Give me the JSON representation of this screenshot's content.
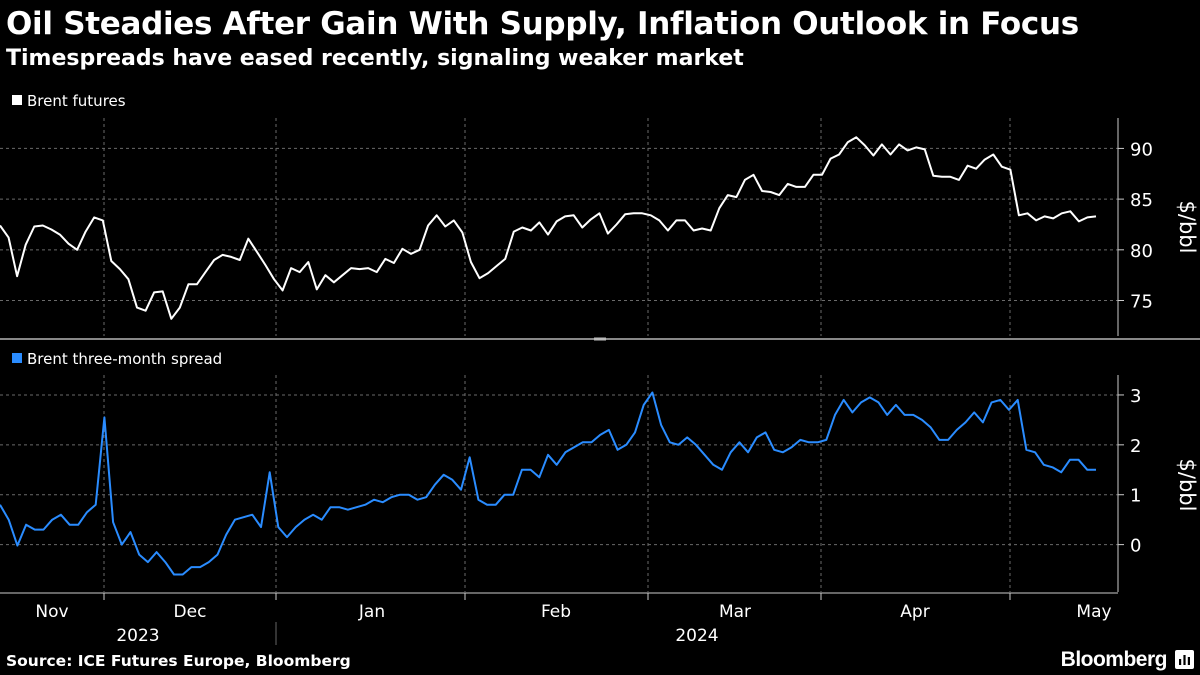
{
  "header": {
    "title": "Oil Steadies After Gain With Supply, Inflation Outlook in Focus",
    "subtitle": "Timespreads have eased recently, signaling weaker market"
  },
  "footer": {
    "source": "Source: ICE Futures Europe, Bloomberg",
    "brand": "Bloomberg"
  },
  "colors": {
    "background": "#000000",
    "futures": "#ffffff",
    "spread": "#2a8cff",
    "grid": "#6a6a6a",
    "axis": "#cccccc"
  },
  "chart_data": [
    {
      "type": "line",
      "legend": "Brent futures",
      "ylabel": "$/bbl",
      "ylim": [
        71.5,
        93
      ],
      "yticks": [
        75,
        80,
        85,
        90
      ],
      "grid": true,
      "values": [
        82.4,
        81.2,
        77.4,
        80.5,
        82.3,
        82.4,
        82.0,
        81.5,
        80.6,
        80.0,
        81.8,
        83.2,
        82.9,
        78.9,
        78.1,
        77.1,
        74.3,
        74.0,
        75.8,
        75.9,
        73.2,
        74.3,
        76.6,
        76.6,
        77.8,
        79.0,
        79.5,
        79.3,
        79.0,
        81.1,
        79.8,
        78.5,
        77.1,
        76.0,
        78.2,
        77.8,
        78.8,
        76.1,
        77.5,
        76.8,
        77.5,
        78.2,
        78.1,
        78.2,
        77.8,
        79.1,
        78.7,
        80.1,
        79.6,
        80.0,
        82.4,
        83.4,
        82.3,
        82.9,
        81.7,
        78.8,
        77.2,
        77.7,
        78.4,
        79.1,
        81.8,
        82.2,
        81.9,
        82.7,
        81.5,
        82.8,
        83.3,
        83.4,
        82.2,
        83.0,
        83.6,
        81.6,
        82.5,
        83.5,
        83.6,
        83.6,
        83.4,
        82.9,
        81.9,
        82.9,
        82.9,
        81.9,
        82.1,
        81.9,
        84.1,
        85.4,
        85.2,
        86.9,
        87.4,
        85.8,
        85.7,
        85.4,
        86.5,
        86.2,
        86.2,
        87.4,
        87.4,
        89.0,
        89.4,
        90.6,
        91.1,
        90.3,
        89.3,
        90.4,
        89.4,
        90.4,
        89.8,
        90.1,
        89.9,
        87.3,
        87.2,
        87.2,
        86.9,
        88.3,
        88.0,
        88.9,
        89.4,
        88.2,
        87.9,
        83.4,
        83.6,
        82.9,
        83.3,
        83.1,
        83.6,
        83.8,
        82.8,
        83.2,
        83.3
      ]
    },
    {
      "type": "line",
      "legend": "Brent three-month spread",
      "ylabel": "$/bbl",
      "ylim": [
        -0.95,
        3.4
      ],
      "yticks": [
        0,
        1,
        2,
        3
      ],
      "grid": true,
      "values": [
        0.8,
        0.5,
        -0.02,
        0.4,
        0.3,
        0.3,
        0.5,
        0.6,
        0.4,
        0.4,
        0.65,
        0.8,
        2.55,
        0.45,
        0.0,
        0.25,
        -0.2,
        -0.35,
        -0.15,
        -0.35,
        -0.6,
        -0.6,
        -0.45,
        -0.45,
        -0.35,
        -0.2,
        0.2,
        0.5,
        0.55,
        0.6,
        0.35,
        1.45,
        0.35,
        0.15,
        0.35,
        0.5,
        0.6,
        0.5,
        0.75,
        0.75,
        0.7,
        0.75,
        0.8,
        0.9,
        0.85,
        0.95,
        1.0,
        1.0,
        0.9,
        0.95,
        1.2,
        1.4,
        1.3,
        1.1,
        1.75,
        0.9,
        0.8,
        0.8,
        1.0,
        1.0,
        1.5,
        1.5,
        1.35,
        1.8,
        1.6,
        1.85,
        1.95,
        2.05,
        2.05,
        2.2,
        2.3,
        1.9,
        2.0,
        2.25,
        2.8,
        3.05,
        2.4,
        2.05,
        2.0,
        2.15,
        2.0,
        1.8,
        1.6,
        1.5,
        1.85,
        2.05,
        1.85,
        2.15,
        2.25,
        1.9,
        1.85,
        1.95,
        2.1,
        2.05,
        2.05,
        2.1,
        2.6,
        2.9,
        2.65,
        2.85,
        2.95,
        2.85,
        2.6,
        2.8,
        2.6,
        2.6,
        2.5,
        2.35,
        2.1,
        2.1,
        2.3,
        2.45,
        2.65,
        2.45,
        2.85,
        2.9,
        2.7,
        2.9,
        1.9,
        1.85,
        1.6,
        1.55,
        1.45,
        1.7,
        1.7,
        1.5,
        1.5
      ]
    }
  ],
  "xaxis": {
    "months": [
      "Nov",
      "Dec",
      "Jan",
      "Feb",
      "Mar",
      "Apr",
      "May"
    ],
    "years": [
      "2023",
      "2024"
    ]
  }
}
